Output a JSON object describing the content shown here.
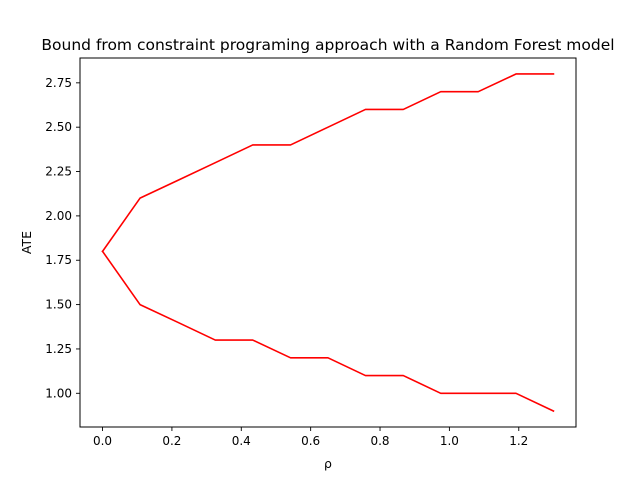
{
  "chart_data": {
    "type": "line",
    "title": "Bound from constraint programing approach with a Random Forest model",
    "xlabel": "ρ",
    "ylabel": "ATE",
    "xlim": [
      -0.065,
      1.365
    ],
    "ylim": [
      0.81,
      2.89
    ],
    "x_ticks": [
      0.0,
      0.2,
      0.4,
      0.6,
      0.8,
      1.0,
      1.2
    ],
    "x_tick_labels": [
      "0.0",
      "0.2",
      "0.4",
      "0.6",
      "0.8",
      "1.0",
      "1.2"
    ],
    "y_ticks": [
      1.0,
      1.25,
      1.5,
      1.75,
      2.0,
      2.25,
      2.5,
      2.75
    ],
    "y_tick_labels": [
      "1.00",
      "1.25",
      "1.50",
      "1.75",
      "2.00",
      "2.25",
      "2.50",
      "2.75"
    ],
    "grid": false,
    "legend": "none",
    "series": [
      {
        "color": "#ff0000",
        "x": [
          0.0,
          0.108,
          0.217,
          0.325,
          0.433,
          0.542,
          0.65,
          0.758,
          0.867,
          0.975,
          1.083,
          1.192,
          1.3
        ],
        "values": [
          1.8,
          2.1,
          2.2,
          2.3,
          2.4,
          2.4,
          2.5,
          2.6,
          2.6,
          2.7,
          2.7,
          2.8,
          2.8
        ]
      },
      {
        "color": "#ff0000",
        "x": [
          0.0,
          0.108,
          0.217,
          0.325,
          0.433,
          0.542,
          0.65,
          0.758,
          0.867,
          0.975,
          1.083,
          1.192,
          1.3
        ],
        "values": [
          1.8,
          1.5,
          1.4,
          1.3,
          1.3,
          1.2,
          1.2,
          1.1,
          1.1,
          1.0,
          1.0,
          1.0,
          0.9
        ]
      }
    ]
  }
}
